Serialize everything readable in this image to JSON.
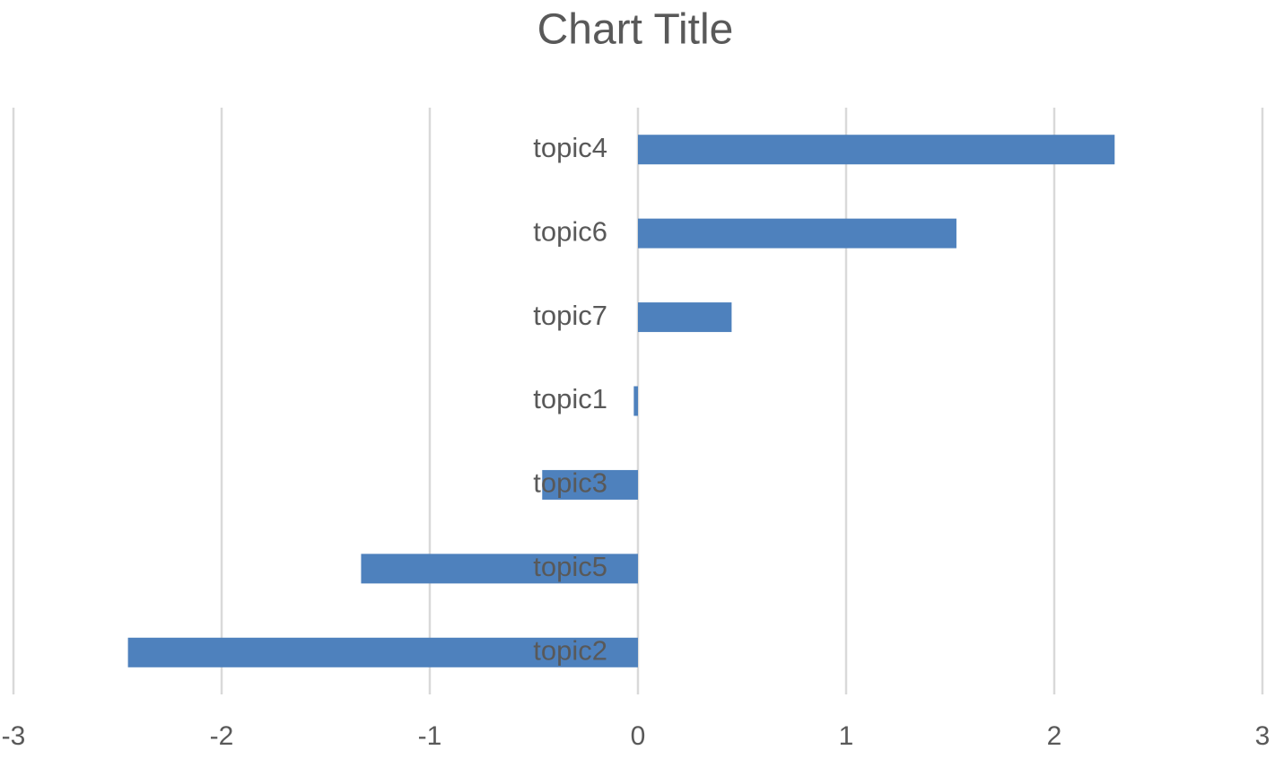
{
  "chart_data": {
    "type": "hbar",
    "title": "Chart Title",
    "categories": [
      "topic4",
      "topic6",
      "topic7",
      "topic1",
      "topic3",
      "topic5",
      "topic2"
    ],
    "values": [
      2.29,
      1.53,
      0.45,
      -0.02,
      -0.46,
      -1.33,
      -2.45
    ],
    "color": "#4e81bd",
    "xlim": [
      -3,
      3
    ],
    "xticks": [
      -3,
      -2,
      -1,
      0,
      1,
      2,
      3
    ],
    "grid": true
  }
}
